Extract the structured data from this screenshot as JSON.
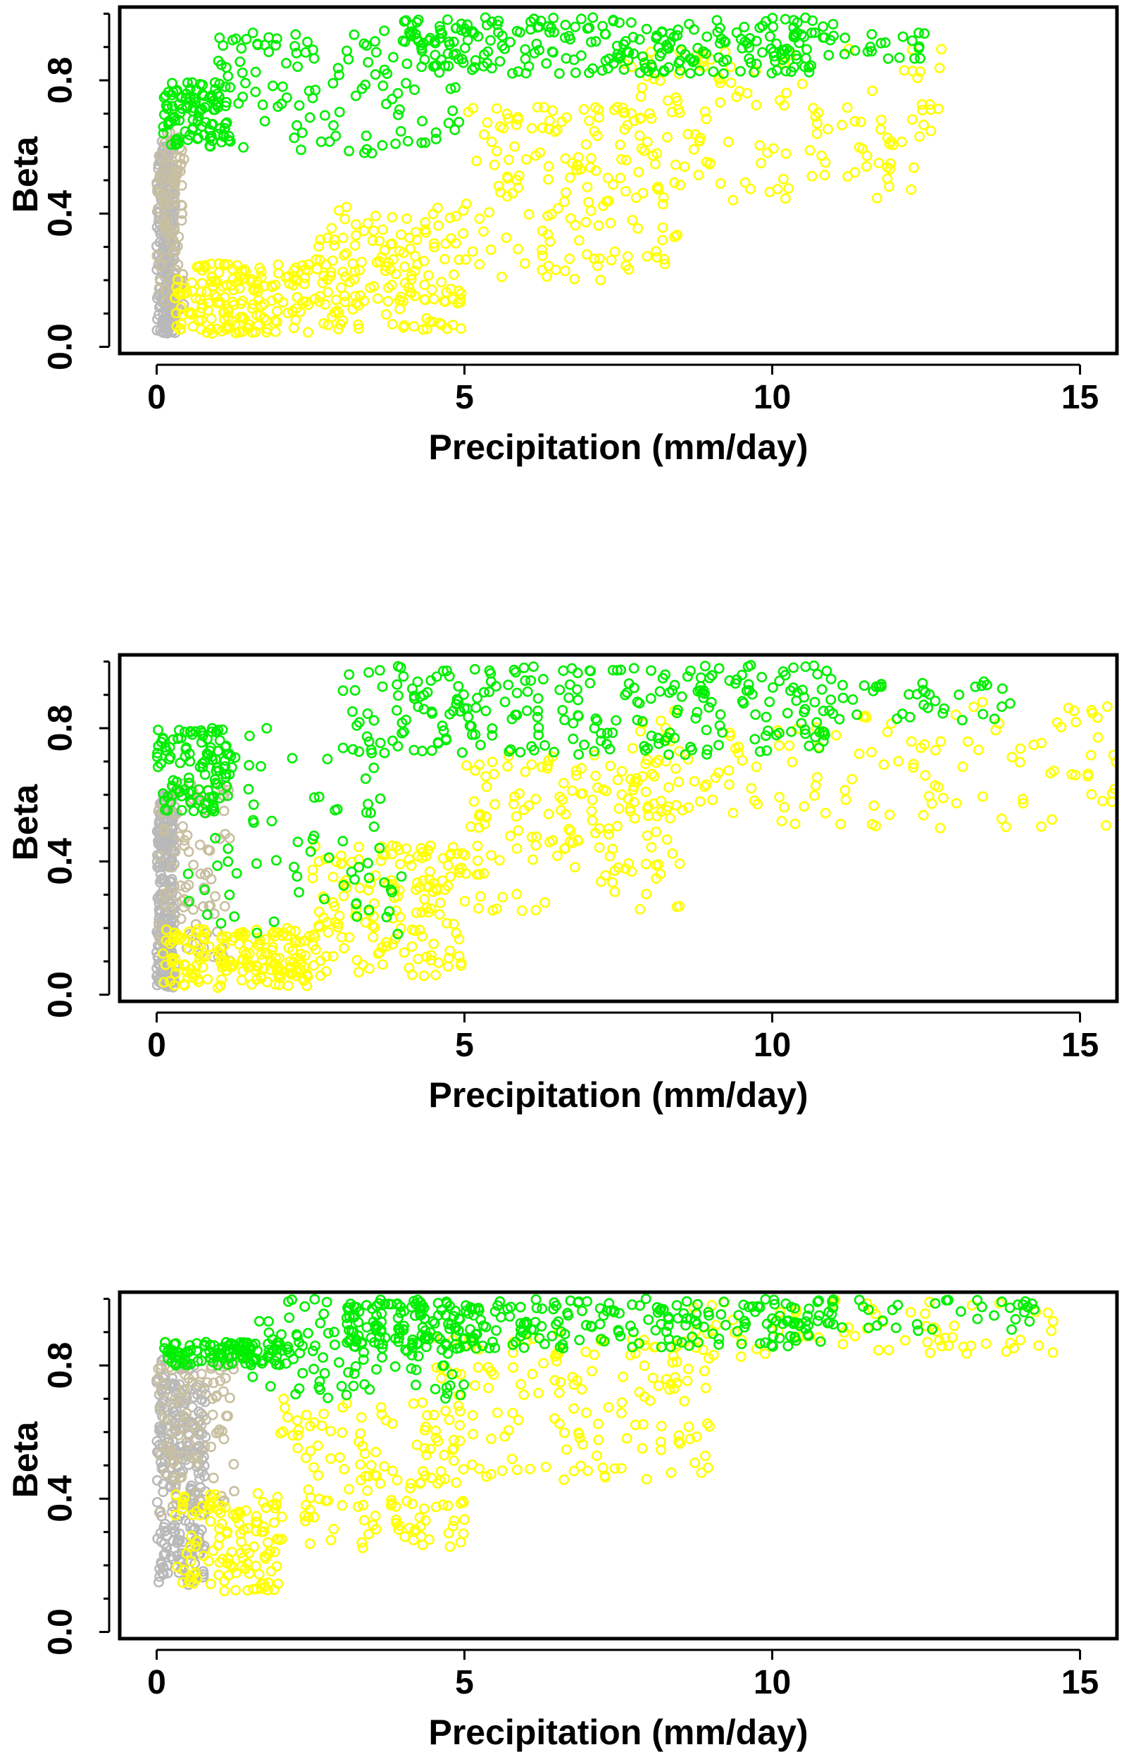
{
  "chart_data": [
    {
      "type": "scatter",
      "xlabel": "Precipitation (mm/day)",
      "ylabel": "Beta",
      "xlim": [
        -0.6,
        15.6
      ],
      "ylim": [
        -0.02,
        1.02
      ],
      "xticks": [
        "0",
        "5",
        "10",
        "15"
      ],
      "yticks": [
        "0.0",
        "0.4",
        "0.8"
      ],
      "grid": false,
      "series": [
        {
          "color": "#b9b9b9",
          "spec": {
            "x": [
              0.0,
              0.3
            ],
            "y": [
              0.04,
              0.62
            ],
            "n": 260
          }
        },
        {
          "color": "#c8bfa0",
          "spec": {
            "x": [
              0.0,
              0.45
            ],
            "y": [
              0.1,
              0.65
            ],
            "n": 90
          }
        },
        {
          "color": "#ffff00",
          "spec": {
            "clusters": [
              {
                "x": [
                  0.3,
                  2.5
                ],
                "y": [
                  0.04,
                  0.25
                ],
                "n": 170
              },
              {
                "x": [
                  2.5,
                  5.0
                ],
                "y": [
                  0.05,
                  0.42
                ],
                "n": 160
              },
              {
                "x": [
                  5.0,
                  8.5
                ],
                "y": [
                  0.2,
                  0.72
                ],
                "n": 150
              },
              {
                "x": [
                  7.5,
                  12.9
                ],
                "y": [
                  0.44,
                  0.9
                ],
                "n": 140
              }
            ]
          }
        },
        {
          "color": "#00ee00",
          "spec": {
            "clusters": [
              {
                "x": [
                  0.1,
                  1.2
                ],
                "y": [
                  0.6,
                  0.8
                ],
                "n": 110
              },
              {
                "x": [
                  1.0,
                  5.0
                ],
                "y": [
                  0.58,
                  0.95
                ],
                "n": 110
              },
              {
                "x": [
                  4.0,
                  11.0
                ],
                "y": [
                  0.82,
                  0.99
                ],
                "n": 260
              },
              {
                "x": [
                  10.0,
                  12.7
                ],
                "y": [
                  0.86,
                  0.95
                ],
                "n": 30
              }
            ]
          }
        }
      ]
    },
    {
      "type": "scatter",
      "xlabel": "Precipitation (mm/day)",
      "ylabel": "Beta",
      "xlim": [
        -0.6,
        15.6
      ],
      "ylim": [
        -0.02,
        1.02
      ],
      "xticks": [
        "0",
        "5",
        "10",
        "15"
      ],
      "yticks": [
        "0.0",
        "0.4",
        "0.8"
      ],
      "grid": false,
      "series": [
        {
          "color": "#b9b9b9",
          "spec": {
            "x": [
              0.0,
              0.3
            ],
            "y": [
              0.02,
              0.6
            ],
            "n": 260
          }
        },
        {
          "color": "#c8bfa0",
          "spec": {
            "x": [
              0.0,
              1.2
            ],
            "y": [
              0.1,
              0.65
            ],
            "n": 90
          }
        },
        {
          "color": "#ffff00",
          "spec": {
            "clusters": [
              {
                "x": [
                  0.1,
                  2.5
                ],
                "y": [
                  0.02,
                  0.2
                ],
                "n": 170
              },
              {
                "x": [
                  2.5,
                  5.0
                ],
                "y": [
                  0.05,
                  0.45
                ],
                "n": 160
              },
              {
                "x": [
                  5.0,
                  8.5
                ],
                "y": [
                  0.25,
                  0.72
                ],
                "n": 150
              },
              {
                "x": [
                  7.5,
                  15.6
                ],
                "y": [
                  0.5,
                  0.88
                ],
                "n": 140
              }
            ]
          }
        },
        {
          "color": "#00ee00",
          "spec": {
            "clusters": [
              {
                "x": [
                  0.0,
                  1.2
                ],
                "y": [
                  0.55,
                  0.8
                ],
                "n": 100
              },
              {
                "x": [
                  0.3,
                  4.0
                ],
                "y": [
                  0.18,
                  0.8
                ],
                "n": 80
              },
              {
                "x": [
                  3.0,
                  11.0
                ],
                "y": [
                  0.72,
                  0.99
                ],
                "n": 260
              },
              {
                "x": [
                  10.5,
                  13.9
                ],
                "y": [
                  0.82,
                  0.95
                ],
                "n": 40
              }
            ]
          }
        }
      ]
    },
    {
      "type": "scatter",
      "xlabel": "Precipitation (mm/day)",
      "ylabel": "Beta",
      "xlim": [
        -0.6,
        15.6
      ],
      "ylim": [
        -0.02,
        1.02
      ],
      "xticks": [
        "0",
        "5",
        "10",
        "15"
      ],
      "yticks": [
        "0.0",
        "0.4",
        "0.8"
      ],
      "grid": false,
      "series": [
        {
          "color": "#b9b9b9",
          "spec": {
            "x": [
              0.0,
              0.8
            ],
            "y": [
              0.14,
              0.82
            ],
            "n": 260
          }
        },
        {
          "color": "#c8bfa0",
          "spec": {
            "x": [
              0.0,
              1.3
            ],
            "y": [
              0.35,
              0.82
            ],
            "n": 90
          }
        },
        {
          "color": "#ffff00",
          "spec": {
            "clusters": [
              {
                "x": [
                  0.3,
                  2.0
                ],
                "y": [
                  0.12,
                  0.42
                ],
                "n": 120
              },
              {
                "x": [
                  2.0,
                  5.0
                ],
                "y": [
                  0.25,
                  0.7
                ],
                "n": 140
              },
              {
                "x": [
                  4.5,
                  9.0
                ],
                "y": [
                  0.45,
                  0.9
                ],
                "n": 150
              },
              {
                "x": [
                  8.5,
                  14.7
                ],
                "y": [
                  0.82,
                  1.0
                ],
                "n": 70
              }
            ]
          }
        },
        {
          "color": "#00ee00",
          "spec": {
            "clusters": [
              {
                "x": [
                  0.1,
                  2.0
                ],
                "y": [
                  0.8,
                  0.87
                ],
                "n": 110
              },
              {
                "x": [
                  1.5,
                  5.0
                ],
                "y": [
                  0.7,
                  1.0
                ],
                "n": 120
              },
              {
                "x": [
                  3.0,
                  11.0
                ],
                "y": [
                  0.85,
                  1.0
                ],
                "n": 280
              },
              {
                "x": [
                  10.0,
                  14.3
                ],
                "y": [
                  0.9,
                  1.0
                ],
                "n": 40
              }
            ]
          }
        }
      ]
    }
  ]
}
